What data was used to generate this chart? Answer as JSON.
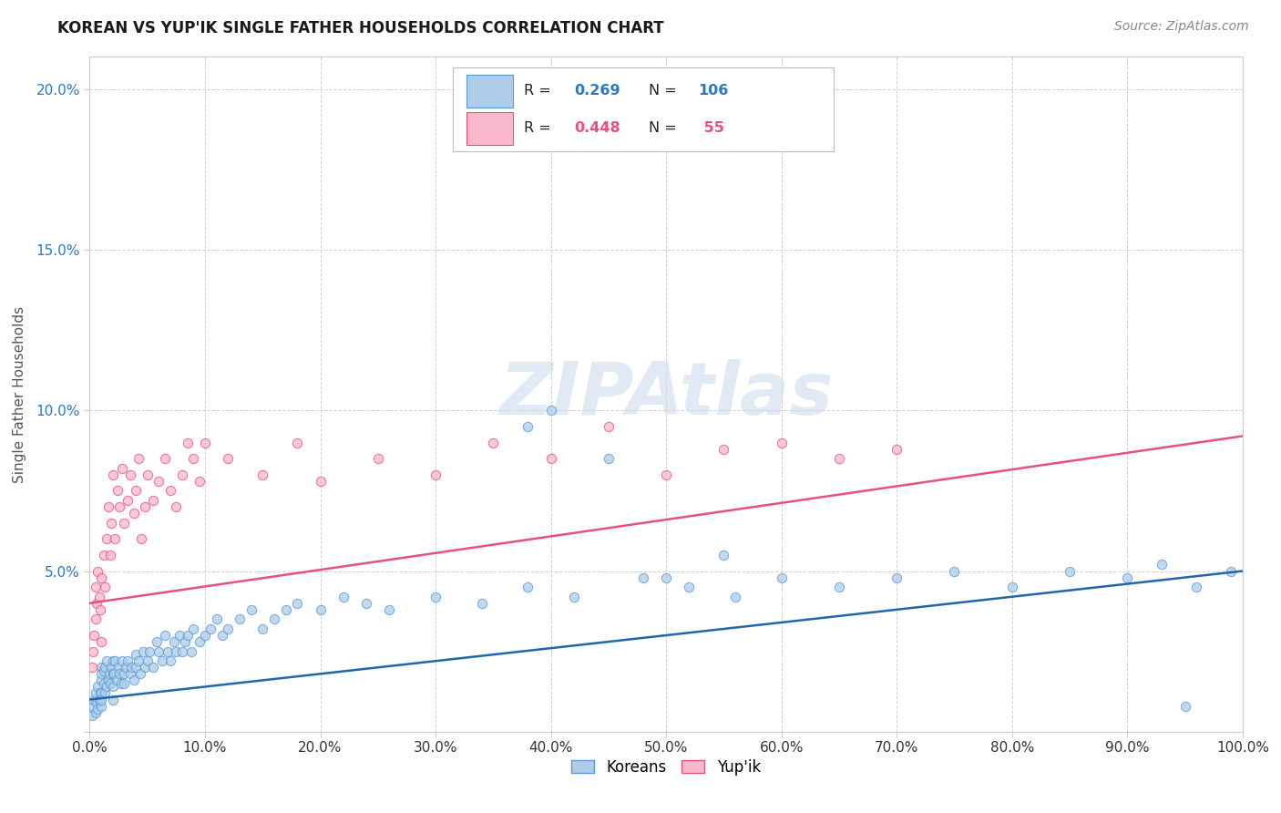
{
  "title": "KOREAN VS YUP'IK SINGLE FATHER HOUSEHOLDS CORRELATION CHART",
  "source": "Source: ZipAtlas.com",
  "ylabel": "Single Father Households",
  "xlim": [
    0,
    1.0
  ],
  "ylim": [
    0,
    0.21
  ],
  "xticks": [
    0.0,
    0.1,
    0.2,
    0.3,
    0.4,
    0.5,
    0.6,
    0.7,
    0.8,
    0.9,
    1.0
  ],
  "yticks": [
    0.0,
    0.05,
    0.1,
    0.15,
    0.2
  ],
  "xticklabels": [
    "0.0%",
    "10.0%",
    "20.0%",
    "30.0%",
    "40.0%",
    "50.0%",
    "60.0%",
    "70.0%",
    "80.0%",
    "90.0%",
    "100.0%"
  ],
  "yticklabels": [
    "",
    "5.0%",
    "10.0%",
    "15.0%",
    "20.0%"
  ],
  "blue_color": "#aecde8",
  "pink_color": "#f9b8cc",
  "blue_edge_color": "#5b9bd5",
  "pink_edge_color": "#e8527a",
  "blue_line_color": "#2166ac",
  "pink_line_color": "#e8527a",
  "blue_value_color": "#2979c7",
  "pink_value_color": "#e8527a",
  "background_color": "#ffffff",
  "grid_color": "#cccccc",
  "blue_intercept": 0.01,
  "blue_slope": 0.04,
  "pink_intercept": 0.04,
  "pink_slope": 0.052,
  "blue_points_x": [
    0.002,
    0.003,
    0.004,
    0.005,
    0.005,
    0.006,
    0.007,
    0.007,
    0.008,
    0.009,
    0.01,
    0.01,
    0.01,
    0.01,
    0.01,
    0.01,
    0.012,
    0.012,
    0.013,
    0.013,
    0.015,
    0.015,
    0.016,
    0.017,
    0.018,
    0.019,
    0.02,
    0.02,
    0.02,
    0.02,
    0.021,
    0.022,
    0.023,
    0.025,
    0.026,
    0.027,
    0.028,
    0.03,
    0.03,
    0.031,
    0.033,
    0.035,
    0.036,
    0.038,
    0.04,
    0.04,
    0.042,
    0.044,
    0.046,
    0.048,
    0.05,
    0.052,
    0.055,
    0.058,
    0.06,
    0.063,
    0.065,
    0.068,
    0.07,
    0.073,
    0.075,
    0.078,
    0.08,
    0.083,
    0.085,
    0.088,
    0.09,
    0.095,
    0.1,
    0.105,
    0.11,
    0.115,
    0.12,
    0.13,
    0.14,
    0.15,
    0.16,
    0.17,
    0.18,
    0.2,
    0.22,
    0.24,
    0.26,
    0.3,
    0.34,
    0.38,
    0.42,
    0.48,
    0.52,
    0.56,
    0.6,
    0.65,
    0.7,
    0.75,
    0.8,
    0.85,
    0.9,
    0.93,
    0.96,
    0.99,
    0.38,
    0.4,
    0.45,
    0.5,
    0.55,
    0.95
  ],
  "blue_points_y": [
    0.005,
    0.008,
    0.01,
    0.006,
    0.012,
    0.009,
    0.007,
    0.014,
    0.01,
    0.012,
    0.008,
    0.012,
    0.016,
    0.02,
    0.01,
    0.018,
    0.015,
    0.019,
    0.012,
    0.02,
    0.014,
    0.022,
    0.016,
    0.018,
    0.015,
    0.02,
    0.014,
    0.018,
    0.022,
    0.01,
    0.018,
    0.022,
    0.016,
    0.02,
    0.018,
    0.015,
    0.022,
    0.018,
    0.015,
    0.02,
    0.022,
    0.018,
    0.02,
    0.016,
    0.02,
    0.024,
    0.022,
    0.018,
    0.025,
    0.02,
    0.022,
    0.025,
    0.02,
    0.028,
    0.025,
    0.022,
    0.03,
    0.025,
    0.022,
    0.028,
    0.025,
    0.03,
    0.025,
    0.028,
    0.03,
    0.025,
    0.032,
    0.028,
    0.03,
    0.032,
    0.035,
    0.03,
    0.032,
    0.035,
    0.038,
    0.032,
    0.035,
    0.038,
    0.04,
    0.038,
    0.042,
    0.04,
    0.038,
    0.042,
    0.04,
    0.045,
    0.042,
    0.048,
    0.045,
    0.042,
    0.048,
    0.045,
    0.048,
    0.05,
    0.045,
    0.05,
    0.048,
    0.052,
    0.045,
    0.05,
    0.095,
    0.1,
    0.085,
    0.048,
    0.055,
    0.008
  ],
  "pink_points_x": [
    0.002,
    0.003,
    0.004,
    0.005,
    0.005,
    0.006,
    0.007,
    0.008,
    0.009,
    0.01,
    0.01,
    0.012,
    0.013,
    0.015,
    0.016,
    0.018,
    0.019,
    0.02,
    0.022,
    0.024,
    0.026,
    0.028,
    0.03,
    0.033,
    0.035,
    0.038,
    0.04,
    0.042,
    0.045,
    0.048,
    0.05,
    0.055,
    0.06,
    0.065,
    0.07,
    0.075,
    0.08,
    0.085,
    0.09,
    0.095,
    0.1,
    0.12,
    0.15,
    0.18,
    0.2,
    0.25,
    0.3,
    0.35,
    0.4,
    0.45,
    0.5,
    0.55,
    0.6,
    0.65,
    0.7
  ],
  "pink_points_y": [
    0.02,
    0.025,
    0.03,
    0.035,
    0.045,
    0.04,
    0.05,
    0.042,
    0.038,
    0.028,
    0.048,
    0.055,
    0.045,
    0.06,
    0.07,
    0.055,
    0.065,
    0.08,
    0.06,
    0.075,
    0.07,
    0.082,
    0.065,
    0.072,
    0.08,
    0.068,
    0.075,
    0.085,
    0.06,
    0.07,
    0.08,
    0.072,
    0.078,
    0.085,
    0.075,
    0.07,
    0.08,
    0.09,
    0.085,
    0.078,
    0.09,
    0.085,
    0.08,
    0.09,
    0.078,
    0.085,
    0.08,
    0.09,
    0.085,
    0.095,
    0.08,
    0.088,
    0.09,
    0.085,
    0.088
  ]
}
